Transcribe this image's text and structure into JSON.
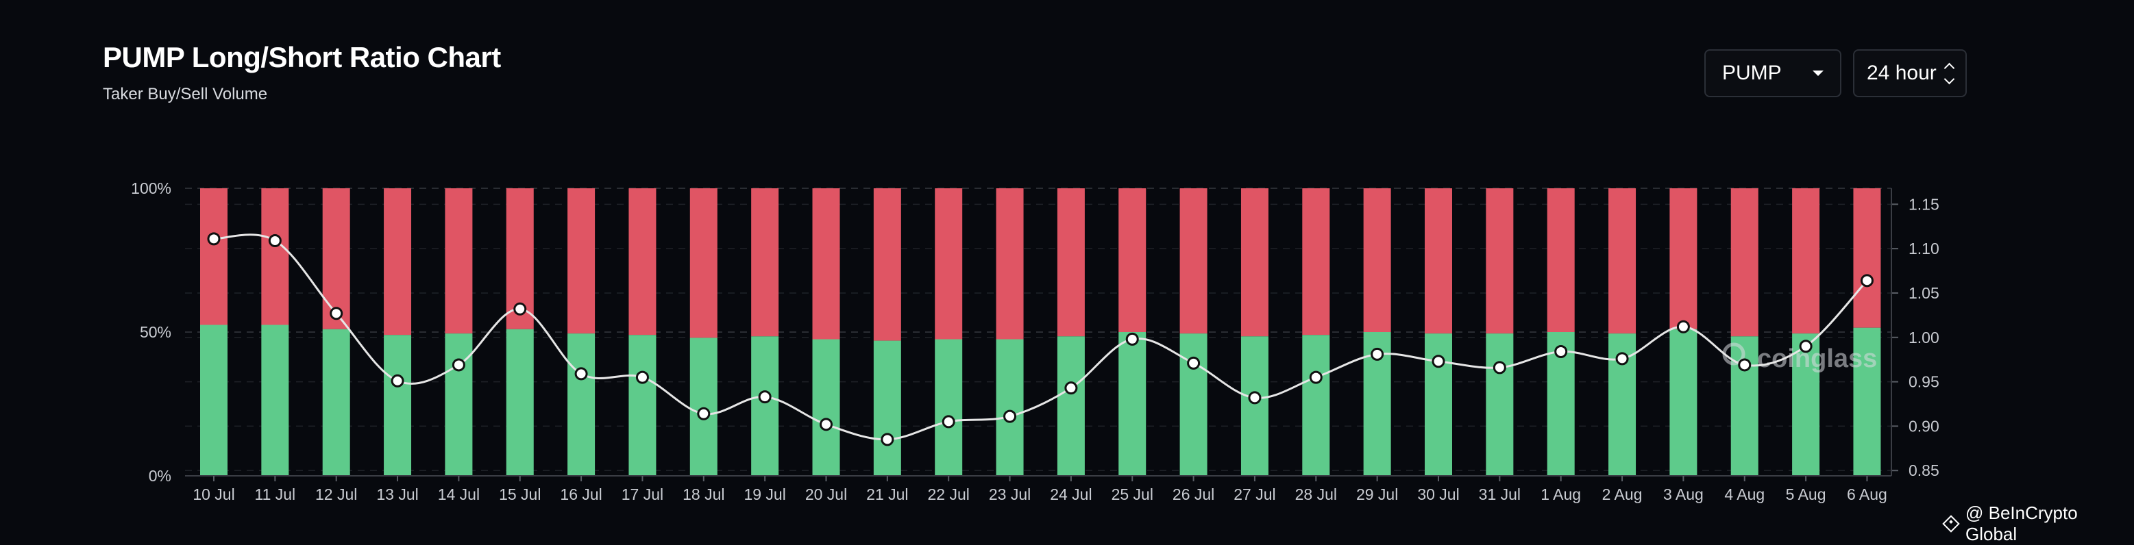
{
  "header": {
    "title": "PUMP Long/Short Ratio Chart",
    "subtitle": "Taker Buy/Sell Volume"
  },
  "controls": {
    "symbol": "PUMP",
    "range": "24 hour"
  },
  "watermark": {
    "text": "coinglass"
  },
  "footer": {
    "credit": "@ BeInCrypto Global"
  },
  "colors": {
    "background": "#07090e",
    "long": "#5ecb8b",
    "short": "#e05564",
    "line": "#e6e6e6",
    "grid": "#2a2d33"
  },
  "chart_data": {
    "type": "bar",
    "stacked": true,
    "grid": true,
    "categories": [
      "10 Jul",
      "11 Jul",
      "12 Jul",
      "13 Jul",
      "14 Jul",
      "15 Jul",
      "16 Jul",
      "17 Jul",
      "18 Jul",
      "19 Jul",
      "20 Jul",
      "21 Jul",
      "22 Jul",
      "23 Jul",
      "24 Jul",
      "25 Jul",
      "26 Jul",
      "27 Jul",
      "28 Jul",
      "29 Jul",
      "30 Jul",
      "31 Jul",
      "1 Aug",
      "2 Aug",
      "3 Aug",
      "4 Aug",
      "5 Aug",
      "6 Aug"
    ],
    "series": [
      {
        "values": [
          52.5,
          52.5,
          51,
          49,
          49.5,
          51,
          49.5,
          49,
          48,
          48.5,
          47.5,
          47,
          47.5,
          47.5,
          48.5,
          50,
          49.5,
          48.5,
          49,
          50,
          49.5,
          49.5,
          50,
          49.5,
          51,
          48.5,
          49.5,
          51.5
        ]
      },
      {
        "values": [
          47.5,
          47.5,
          49,
          51,
          50.5,
          49,
          50.5,
          51,
          52,
          51.5,
          52.5,
          53,
          52.5,
          52.5,
          51.5,
          50,
          50.5,
          51.5,
          51,
          50,
          50.5,
          50.5,
          50,
          50.5,
          49,
          51.5,
          50.5,
          48.5
        ]
      }
    ],
    "line_series": {
      "axis": "right",
      "values": [
        1.111,
        1.109,
        1.027,
        0.951,
        0.969,
        1.032,
        0.959,
        0.955,
        0.914,
        0.933,
        0.902,
        0.885,
        0.905,
        0.911,
        0.943,
        0.998,
        0.971,
        0.932,
        0.955,
        0.981,
        0.973,
        0.966,
        0.984,
        0.976,
        1.012,
        0.969,
        0.99,
        1.064
      ]
    },
    "y_left": {
      "ticks": [
        "0%",
        "50%",
        "100%"
      ],
      "range": [
        0,
        100
      ]
    },
    "y_right": {
      "ticks": [
        "0.85",
        "0.90",
        "0.95",
        "1.00",
        "1.05",
        "1.10",
        "1.15"
      ],
      "range": [
        0.844,
        1.168
      ]
    }
  }
}
